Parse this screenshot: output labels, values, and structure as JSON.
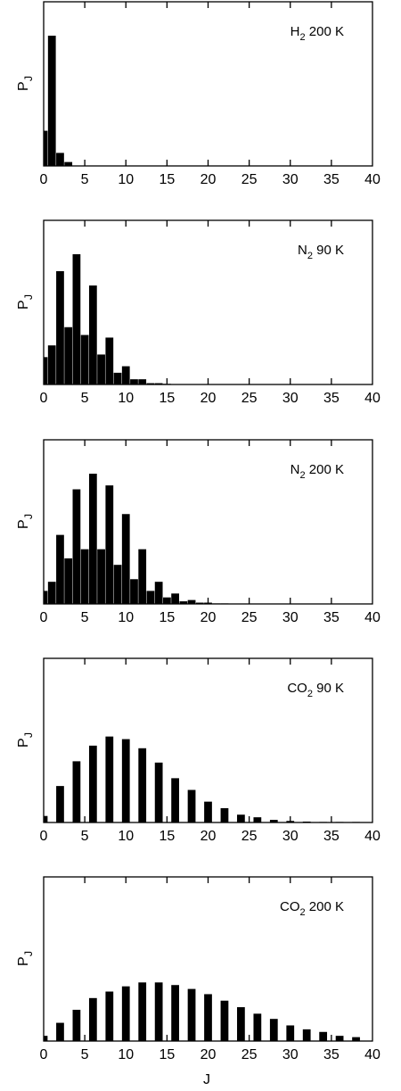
{
  "figure": {
    "xlabel": "J"
  },
  "chart_data": [
    {
      "type": "bar",
      "molecule": "H",
      "subscript": "2",
      "temp": " 200 K",
      "ylabel": "P",
      "ylabel_sub": "J",
      "xlim": [
        0,
        40
      ],
      "xticks": [
        0,
        5,
        10,
        15,
        20,
        25,
        30,
        35,
        40
      ],
      "ymax": 1.0,
      "x": [
        0,
        1,
        2,
        3
      ],
      "values": [
        0.27,
        1.0,
        0.1,
        0.03
      ]
    },
    {
      "type": "bar",
      "molecule": "N",
      "subscript": "2",
      "temp": " 90 K",
      "ylabel": "P",
      "ylabel_sub": "J",
      "xlim": [
        0,
        40
      ],
      "xticks": [
        0,
        5,
        10,
        15,
        20,
        25,
        30,
        35,
        40
      ],
      "ymax": 1.0,
      "x": [
        0,
        1,
        2,
        3,
        4,
        5,
        6,
        7,
        8,
        9,
        10,
        11,
        12,
        13,
        14,
        15
      ],
      "values": [
        0.21,
        0.3,
        0.87,
        0.44,
        1.0,
        0.38,
        0.76,
        0.23,
        0.36,
        0.09,
        0.14,
        0.04,
        0.04,
        0.01,
        0.01,
        0.005
      ]
    },
    {
      "type": "bar",
      "molecule": "N",
      "subscript": "2",
      "temp": " 200 K",
      "ylabel": "P",
      "ylabel_sub": "J",
      "xlim": [
        0,
        40
      ],
      "xticks": [
        0,
        5,
        10,
        15,
        20,
        25,
        30,
        35,
        40
      ],
      "ymax": 1.0,
      "x": [
        0,
        1,
        2,
        3,
        4,
        5,
        6,
        7,
        8,
        9,
        10,
        11,
        12,
        13,
        14,
        15,
        16,
        17,
        18,
        19,
        20,
        21,
        22
      ],
      "values": [
        0.1,
        0.17,
        0.53,
        0.35,
        0.88,
        0.42,
        1.0,
        0.42,
        0.91,
        0.3,
        0.69,
        0.19,
        0.42,
        0.1,
        0.17,
        0.05,
        0.08,
        0.02,
        0.03,
        0.01,
        0.01,
        0.004,
        0.004
      ]
    },
    {
      "type": "bar",
      "molecule": "CO",
      "subscript": "2",
      "temp": " 90 K",
      "ylabel": "P",
      "ylabel_sub": "J",
      "xlim": [
        0,
        40
      ],
      "xticks": [
        0,
        5,
        10,
        15,
        20,
        25,
        30,
        35,
        40
      ],
      "ymax": 1.0,
      "x": [
        0,
        2,
        4,
        6,
        8,
        10,
        12,
        14,
        16,
        18,
        20,
        22,
        24,
        26,
        28,
        30,
        32,
        34,
        36,
        38
      ],
      "values": [
        0.05,
        0.28,
        0.47,
        0.59,
        0.66,
        0.64,
        0.57,
        0.46,
        0.34,
        0.25,
        0.16,
        0.11,
        0.06,
        0.04,
        0.02,
        0.012,
        0.007,
        0.004,
        0.002,
        0.001
      ]
    },
    {
      "type": "bar",
      "molecule": "CO",
      "subscript": "2",
      "temp": " 200 K",
      "ylabel": "P",
      "ylabel_sub": "J",
      "xlim": [
        0,
        40
      ],
      "xticks": [
        0,
        5,
        10,
        15,
        20,
        25,
        30,
        35,
        40
      ],
      "ymax": 1.0,
      "x": [
        0,
        2,
        4,
        6,
        8,
        10,
        12,
        14,
        16,
        18,
        20,
        22,
        24,
        26,
        28,
        30,
        32,
        34,
        36,
        38
      ],
      "values": [
        0.04,
        0.14,
        0.24,
        0.33,
        0.38,
        0.42,
        0.45,
        0.45,
        0.43,
        0.4,
        0.36,
        0.31,
        0.26,
        0.21,
        0.17,
        0.12,
        0.09,
        0.07,
        0.04,
        0.03
      ]
    }
  ]
}
